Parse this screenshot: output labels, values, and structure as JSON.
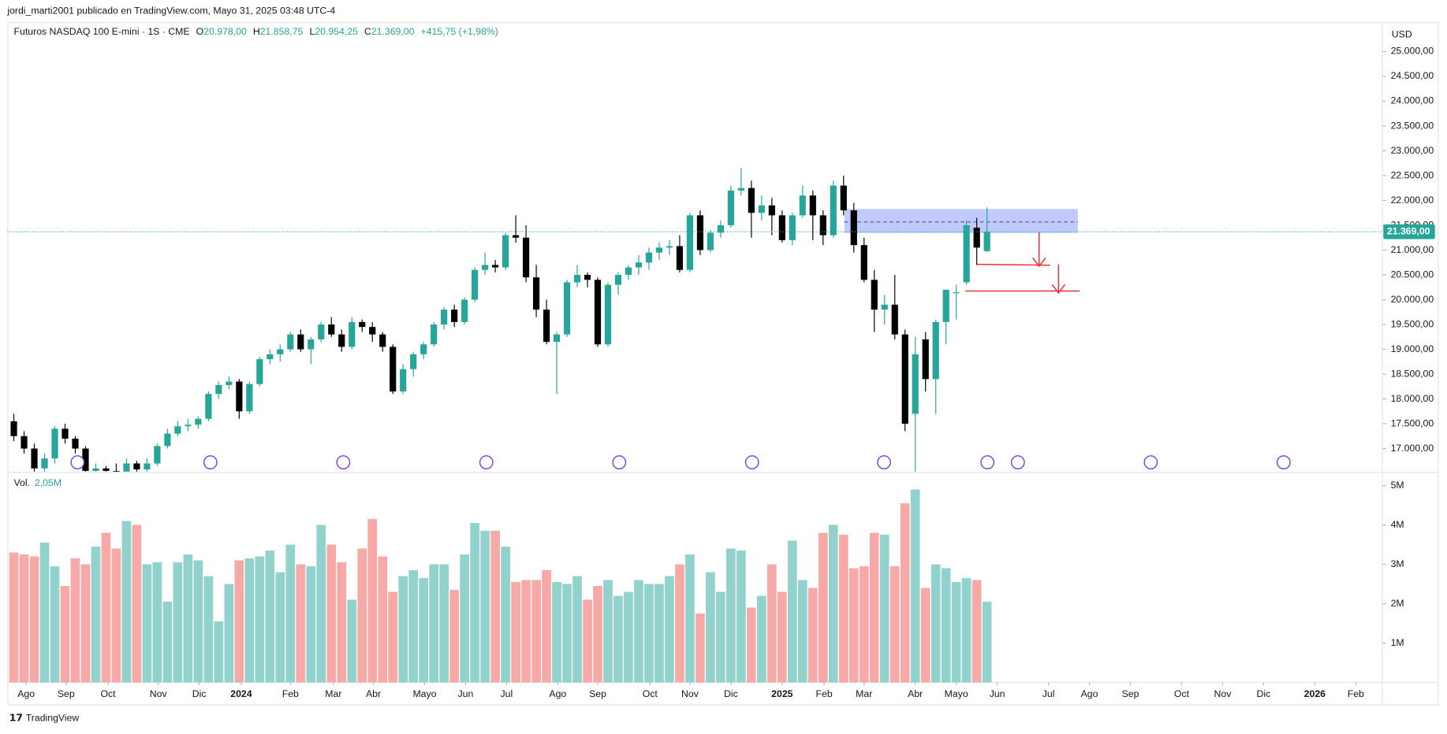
{
  "page": {
    "byline": "jordi_marti2001 publicado en TradingView.com, Mayo 31, 2025 03:48 UTC-4",
    "brand": "TradingView"
  },
  "chart_data": {
    "type": "candlestick",
    "title": "Futuros NASDAQ 100 E-mini · 1S · CME",
    "ohlc_labels": {
      "o": "O",
      "open": "20.978,00",
      "h": "H",
      "high": "21.858,75",
      "l": "L",
      "low": "20.954,25",
      "c": "C",
      "close": "21.369,00",
      "change": "+415,75 (+1,98%)"
    },
    "currency": "USD",
    "up_color": "#26a69a",
    "down_color": "#000000",
    "grid": false,
    "xlim": [
      -0.63,
      133.6
    ],
    "xticks": [
      {
        "value": 1.2,
        "label": "Ago"
      },
      {
        "value": 5.1,
        "label": "Sep"
      },
      {
        "value": 9.2,
        "label": "Oct"
      },
      {
        "value": 14.1,
        "label": "Nov"
      },
      {
        "value": 18.1,
        "label": "Dic"
      },
      {
        "value": 22.2,
        "label": "2024"
      },
      {
        "value": 27,
        "label": "Feb"
      },
      {
        "value": 31.2,
        "label": "Mar"
      },
      {
        "value": 35.1,
        "label": "Abr"
      },
      {
        "value": 40.1,
        "label": "Mayo"
      },
      {
        "value": 44.1,
        "label": "Jun"
      },
      {
        "value": 48.1,
        "label": "Jul"
      },
      {
        "value": 53.1,
        "label": "Ago"
      },
      {
        "value": 57,
        "label": "Sep"
      },
      {
        "value": 62.1,
        "label": "Oct"
      },
      {
        "value": 66,
        "label": "Nov"
      },
      {
        "value": 70,
        "label": "Dic"
      },
      {
        "value": 75,
        "label": "2025"
      },
      {
        "value": 79.1,
        "label": "Feb"
      },
      {
        "value": 83,
        "label": "Mar"
      },
      {
        "value": 88,
        "label": "Abr"
      },
      {
        "value": 92,
        "label": "Mayo"
      },
      {
        "value": 96,
        "label": "Jun"
      },
      {
        "value": 101,
        "label": "Jul"
      },
      {
        "value": 105,
        "label": "Ago"
      },
      {
        "value": 109,
        "label": "Sep"
      },
      {
        "value": 114,
        "label": "Oct"
      },
      {
        "value": 118,
        "label": "Nov"
      },
      {
        "value": 122,
        "label": "Dic"
      },
      {
        "value": 127,
        "label": "2026"
      },
      {
        "value": 131,
        "label": "Feb"
      }
    ],
    "ylim": [
      16537,
      25594
    ],
    "yticks": [
      {
        "value": 17000,
        "label": "17.000,00"
      },
      {
        "value": 17500,
        "label": "17.500,00"
      },
      {
        "value": 18000,
        "label": "18.000,00"
      },
      {
        "value": 18500,
        "label": "18.500,00"
      },
      {
        "value": 19000,
        "label": "19.000,00"
      },
      {
        "value": 19500,
        "label": "19.500,00"
      },
      {
        "value": 20000,
        "label": "20.000,00"
      },
      {
        "value": 20500,
        "label": "20.500,00"
      },
      {
        "value": 21000,
        "label": "21.000,00"
      },
      {
        "value": 21500,
        "label": "21.500,00"
      },
      {
        "value": 22000,
        "label": "22.000,00"
      },
      {
        "value": 22500,
        "label": "22.500,00"
      },
      {
        "value": 23000,
        "label": "23.000,00"
      },
      {
        "value": 23500,
        "label": "23.500,00"
      },
      {
        "value": 24000,
        "label": "24.000,00"
      },
      {
        "value": 24500,
        "label": "24.500,00"
      },
      {
        "value": 25000,
        "label": "25.000,00"
      }
    ],
    "last_price": {
      "value": 21369,
      "label": "21.369,00"
    },
    "open": [
      17550,
      17250,
      17000,
      16600,
      16800,
      17400,
      17200,
      17000,
      16550,
      16600,
      16550,
      16500,
      16700,
      16580,
      16700,
      17050,
      17300,
      17450,
      17480,
      17600,
      18100,
      18280,
      18350,
      17750,
      18300,
      18800,
      18900,
      19000,
      19300,
      19000,
      19200,
      19500,
      19300,
      19050,
      19550,
      19450,
      19300,
      19050,
      18150,
      18600,
      18900,
      19100,
      19500,
      19800,
      19550,
      20000,
      20600,
      20700,
      20650,
      21300,
      21250,
      20450,
      19800,
      19150,
      19300,
      20350,
      20500,
      20400,
      19100,
      20300,
      20500,
      20650,
      20750,
      20950,
      21050,
      21080,
      20600,
      21700,
      21000,
      21350,
      21500,
      22200,
      22250,
      21750,
      21900,
      21700,
      21200,
      21700,
      22100,
      21700,
      21300,
      22300,
      21800,
      21100,
      20400,
      19800,
      19900,
      19300,
      17700,
      19200,
      18400,
      19550,
      20150,
      20350,
      21450,
      20978
    ],
    "high": [
      17700,
      17350,
      17100,
      16900,
      17450,
      17500,
      17250,
      17050,
      16700,
      16650,
      16700,
      16800,
      16750,
      16800,
      17100,
      17400,
      17550,
      17600,
      17650,
      18150,
      18350,
      18450,
      18400,
      18350,
      18850,
      19000,
      19100,
      19350,
      19400,
      19250,
      19550,
      19650,
      19400,
      19650,
      19600,
      19550,
      19350,
      19100,
      18700,
      18950,
      19150,
      19550,
      19850,
      19900,
      20050,
      20650,
      20950,
      20800,
      21350,
      21700,
      21500,
      20700,
      20000,
      19350,
      20400,
      20700,
      20550,
      20450,
      20350,
      20550,
      20700,
      20900,
      21050,
      21150,
      21200,
      21300,
      21750,
      21800,
      21400,
      21600,
      22300,
      22650,
      22400,
      22100,
      22050,
      21800,
      21750,
      22300,
      22200,
      21800,
      22400,
      22500,
      21950,
      21250,
      20600,
      20100,
      20500,
      19400,
      19250,
      19350,
      19600,
      20200,
      20300,
      21600,
      21650,
      21858.75
    ],
    "low": [
      17150,
      16900,
      16500,
      16400,
      16700,
      17100,
      16900,
      16450,
      16400,
      16400,
      16350,
      16400,
      16450,
      16500,
      16650,
      17000,
      17250,
      17350,
      17400,
      17550,
      18000,
      18200,
      17600,
      17700,
      18250,
      18700,
      18750,
      18950,
      18950,
      18700,
      19150,
      19250,
      18950,
      19000,
      19350,
      19150,
      18950,
      18100,
      18100,
      18450,
      18800,
      19050,
      19400,
      19450,
      19500,
      19950,
      20500,
      20550,
      20600,
      21150,
      20350,
      19650,
      19100,
      18100,
      19250,
      20250,
      20250,
      19050,
      19050,
      20100,
      20400,
      20500,
      20600,
      20800,
      20900,
      20550,
      20550,
      20900,
      20950,
      21250,
      21450,
      22100,
      21250,
      21600,
      21300,
      21150,
      21100,
      21650,
      21200,
      21100,
      21250,
      21700,
      20950,
      20350,
      19350,
      19500,
      19200,
      17350,
      16460,
      18150,
      17700,
      19100,
      19600,
      20300,
      20700,
      20954.25
    ],
    "close": [
      17250,
      17000,
      16600,
      16800,
      17400,
      17200,
      17000,
      16550,
      16600,
      16550,
      16500,
      16700,
      16580,
      16700,
      17050,
      17300,
      17450,
      17480,
      17600,
      18100,
      18280,
      18350,
      17750,
      18300,
      18800,
      18900,
      19000,
      19300,
      19000,
      19200,
      19500,
      19300,
      19050,
      19550,
      19450,
      19300,
      19050,
      18150,
      18600,
      18900,
      19100,
      19500,
      19800,
      19550,
      20000,
      20600,
      20700,
      20650,
      21300,
      21250,
      20450,
      19800,
      19150,
      19300,
      20350,
      20500,
      20400,
      19100,
      20300,
      20500,
      20650,
      20750,
      20950,
      21050,
      21080,
      20600,
      21700,
      21000,
      21350,
      21500,
      22200,
      22250,
      21750,
      21900,
      21700,
      21200,
      21700,
      22100,
      21700,
      21300,
      22300,
      21800,
      21100,
      20400,
      19800,
      19900,
      19300,
      17500,
      18900,
      18400,
      19550,
      20200,
      20150,
      21500,
      21050,
      21369
    ],
    "volume": {
      "name": "Vol.",
      "value_label": "2,05M",
      "up_color": "#92d2cc",
      "down_color": "#f7a9a7",
      "y2lim": [
        0,
        5.31
      ],
      "y2ticks": [
        {
          "value": 1,
          "label": "1M"
        },
        {
          "value": 2,
          "label": "2M"
        },
        {
          "value": 3,
          "label": "3M"
        },
        {
          "value": 4,
          "label": "4M"
        },
        {
          "value": 5,
          "label": "5M"
        }
      ],
      "values": [
        3.3,
        3.25,
        3.2,
        3.55,
        2.95,
        2.45,
        3.15,
        3.0,
        3.45,
        3.8,
        3.4,
        4.1,
        4.0,
        3.0,
        3.05,
        2.05,
        3.05,
        3.25,
        3.1,
        2.7,
        1.55,
        2.5,
        3.1,
        3.15,
        3.2,
        3.35,
        2.8,
        3.5,
        3.0,
        2.95,
        4.0,
        3.5,
        3.05,
        2.1,
        3.4,
        4.15,
        3.2,
        2.3,
        2.7,
        2.85,
        2.65,
        3.0,
        3.0,
        2.35,
        3.25,
        4.05,
        3.85,
        3.85,
        3.45,
        2.55,
        2.6,
        2.6,
        2.85,
        2.55,
        2.5,
        2.7,
        2.1,
        2.45,
        2.6,
        2.2,
        2.3,
        2.6,
        2.5,
        2.5,
        2.7,
        3.0,
        3.25,
        1.75,
        2.8,
        2.3,
        3.4,
        3.35,
        1.9,
        2.2,
        3.0,
        2.3,
        3.6,
        2.6,
        2.4,
        3.8,
        4.0,
        3.75,
        2.9,
        2.95,
        3.8,
        3.75,
        2.95,
        4.55,
        4.9,
        2.4,
        3.0,
        2.9,
        2.55,
        2.65,
        2.6,
        2.05
      ]
    }
  }
}
